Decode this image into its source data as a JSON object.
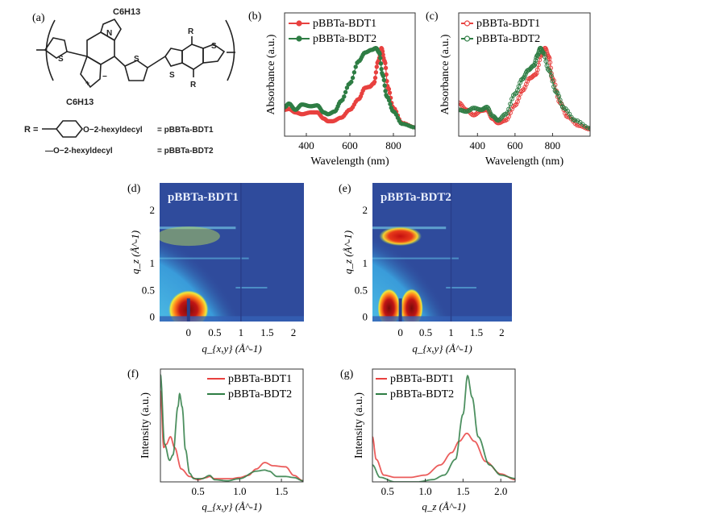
{
  "panel_labels": {
    "a": "(a)",
    "b": "(b)",
    "c": "(c)",
    "d": "(d)",
    "e": "(e)",
    "f": "(f)",
    "g": "(g)"
  },
  "structure": {
    "alkyl_top": "C6H13",
    "alkyl_bottom": "C6H13",
    "n": "N",
    "s": "S",
    "r": "R",
    "plus": "+",
    "minus": "−",
    "r_def_prefix": "R =",
    "r1_group": "O−2-hexyldecyl",
    "r1_name": "= pBBTa-BDT1",
    "r2_group": "—O−2-hexyldecyl",
    "r2_name": "= pBBTa-BDT2"
  },
  "colors": {
    "bdt1": "#e8413f",
    "bdt2": "#2e7d44",
    "giwaxs_bg": "#2f4b9c"
  },
  "chart_data": [
    {
      "id": "b",
      "type": "line",
      "marker": "filled-circle",
      "xlabel": "Wavelength (nm)",
      "ylabel": "Absorbance (a.u.)",
      "xlim": [
        300,
        900
      ],
      "ylim": [
        0,
        1.4
      ],
      "xticks": [
        400,
        600,
        800
      ],
      "legend": "top-left",
      "series": [
        {
          "name": "pBBTa-BDT1",
          "color": "#e8413f",
          "x": [
            300,
            320,
            350,
            380,
            420,
            450,
            480,
            500,
            520,
            560,
            600,
            640,
            670,
            690,
            710,
            730,
            745,
            760,
            775,
            800,
            840,
            900
          ],
          "y": [
            0.3,
            0.31,
            0.27,
            0.25,
            0.27,
            0.27,
            0.2,
            0.17,
            0.17,
            0.21,
            0.3,
            0.42,
            0.55,
            0.56,
            0.6,
            0.85,
            1.0,
            0.85,
            0.55,
            0.32,
            0.15,
            0.1
          ]
        },
        {
          "name": "pBBTa-BDT2",
          "color": "#2e7d44",
          "x": [
            300,
            320,
            350,
            380,
            420,
            450,
            480,
            500,
            530,
            560,
            600,
            640,
            670,
            700,
            720,
            735,
            750,
            770,
            800,
            840,
            900
          ],
          "y": [
            0.33,
            0.37,
            0.3,
            0.36,
            0.34,
            0.35,
            0.27,
            0.25,
            0.28,
            0.4,
            0.6,
            0.85,
            0.95,
            0.98,
            1.0,
            0.95,
            0.7,
            0.45,
            0.28,
            0.14,
            0.1
          ]
        }
      ]
    },
    {
      "id": "c",
      "type": "line",
      "marker": "open-circle",
      "xlabel": "Wavelength (nm)",
      "ylabel": "Absorbance (a.u.)",
      "xlim": [
        300,
        1000
      ],
      "ylim": [
        0,
        1.4
      ],
      "xticks": [
        400,
        600,
        800
      ],
      "legend": "top-left",
      "series": [
        {
          "name": "pBBTa-BDT1",
          "color": "#e8413f",
          "x": [
            300,
            340,
            380,
            420,
            450,
            480,
            510,
            550,
            600,
            640,
            680,
            710,
            740,
            760,
            780,
            800,
            840,
            880,
            940,
            1000
          ],
          "y": [
            0.38,
            0.3,
            0.24,
            0.29,
            0.3,
            0.2,
            0.15,
            0.18,
            0.35,
            0.52,
            0.66,
            0.7,
            0.92,
            1.0,
            0.9,
            0.65,
            0.38,
            0.22,
            0.12,
            0.08
          ]
        },
        {
          "name": "pBBTa-BDT2",
          "color": "#2e7d44",
          "x": [
            300,
            340,
            380,
            420,
            450,
            480,
            510,
            550,
            600,
            640,
            670,
            700,
            720,
            735,
            750,
            780,
            820,
            860,
            920,
            1000
          ],
          "y": [
            0.3,
            0.28,
            0.32,
            0.3,
            0.33,
            0.23,
            0.18,
            0.25,
            0.48,
            0.65,
            0.75,
            0.8,
            0.92,
            1.0,
            0.95,
            0.75,
            0.5,
            0.32,
            0.18,
            0.09
          ]
        }
      ]
    },
    {
      "id": "d",
      "type": "heatmap",
      "title": "pBBTa-BDT1",
      "xlabel": "q_{x,y} (Å^-1)",
      "ylabel": "q_z (Å^-1)",
      "xlim": [
        -0.55,
        2.2
      ],
      "ylim": [
        -0.1,
        2.5
      ],
      "xticks": [
        "0",
        "0.5",
        "1",
        "1.5",
        "2"
      ],
      "yticks": [
        "0",
        "0.5",
        "1",
        "2"
      ]
    },
    {
      "id": "e",
      "type": "heatmap",
      "title": "pBBTa-BDT2",
      "xlabel": "q_{x,y} (Å^-1)",
      "ylabel": "q_z (Å^-1)",
      "xlim": [
        -0.55,
        2.2
      ],
      "ylim": [
        -0.1,
        2.5
      ],
      "xticks": [
        "0",
        "0.5",
        "1",
        "1.5",
        "2"
      ],
      "yticks": [
        "0",
        "0.5",
        "1",
        "2"
      ]
    },
    {
      "id": "f",
      "type": "line",
      "xlabel": "q_{x,y} (Å^-1)",
      "ylabel": "Intensity (a.u.)",
      "xlim": [
        0.05,
        1.76
      ],
      "ylim": [
        0,
        1.05
      ],
      "xticks": [
        "0.5",
        "1.0",
        "1.5"
      ],
      "legend": "top-right",
      "series": [
        {
          "name": "pBBTa-BDT1",
          "color": "#e8413f",
          "x": [
            0.05,
            0.09,
            0.12,
            0.17,
            0.22,
            0.3,
            0.4,
            0.5,
            0.6,
            0.64,
            0.7,
            0.9,
            1.0,
            1.1,
            1.2,
            1.3,
            1.4,
            1.55,
            1.65,
            1.76
          ],
          "y": [
            0.85,
            0.32,
            0.35,
            0.42,
            0.32,
            0.12,
            0.05,
            0.02,
            0.04,
            0.05,
            0.03,
            0.03,
            0.04,
            0.06,
            0.12,
            0.18,
            0.15,
            0.14,
            0.06,
            0.01
          ]
        },
        {
          "name": "pBBTa-BDT2",
          "color": "#2e7d44",
          "x": [
            0.05,
            0.1,
            0.16,
            0.2,
            0.26,
            0.28,
            0.31,
            0.35,
            0.4,
            0.45,
            0.55,
            0.64,
            0.7,
            0.85,
            1.0,
            1.2,
            1.3,
            1.35,
            1.45,
            1.55,
            1.65,
            1.76
          ],
          "y": [
            1.0,
            0.35,
            0.2,
            0.25,
            0.7,
            0.82,
            0.7,
            0.3,
            0.08,
            0.03,
            0.03,
            0.06,
            0.02,
            0.01,
            0.03,
            0.1,
            0.11,
            0.1,
            0.05,
            0.05,
            0.04,
            0.01
          ]
        }
      ]
    },
    {
      "id": "g",
      "type": "line",
      "xlabel": "q_z (Å^-1)",
      "ylabel": "Intensity (a.u.)",
      "xlim": [
        0.3,
        2.19
      ],
      "ylim": [
        0,
        1.0
      ],
      "xticks": [
        "0.5",
        "1.0",
        "1.5",
        "2.0"
      ],
      "legend": "top-left",
      "series": [
        {
          "name": "pBBTa-BDT1",
          "color": "#e8413f",
          "x": [
            0.3,
            0.35,
            0.45,
            0.6,
            0.8,
            1.0,
            1.2,
            1.35,
            1.45,
            1.55,
            1.65,
            1.8,
            2.0,
            2.19
          ],
          "y": [
            0.4,
            0.2,
            0.06,
            0.04,
            0.04,
            0.06,
            0.15,
            0.26,
            0.36,
            0.43,
            0.36,
            0.18,
            0.07,
            0.02
          ]
        },
        {
          "name": "pBBTa-BDT2",
          "color": "#2e7d44",
          "x": [
            0.3,
            0.4,
            0.6,
            0.9,
            1.1,
            1.25,
            1.4,
            1.5,
            1.56,
            1.62,
            1.7,
            1.85,
            2.0,
            2.19
          ],
          "y": [
            0.15,
            0.04,
            0.0,
            0.0,
            0.02,
            0.06,
            0.2,
            0.6,
            0.94,
            0.75,
            0.4,
            0.15,
            0.06,
            0.03
          ]
        }
      ]
    }
  ]
}
